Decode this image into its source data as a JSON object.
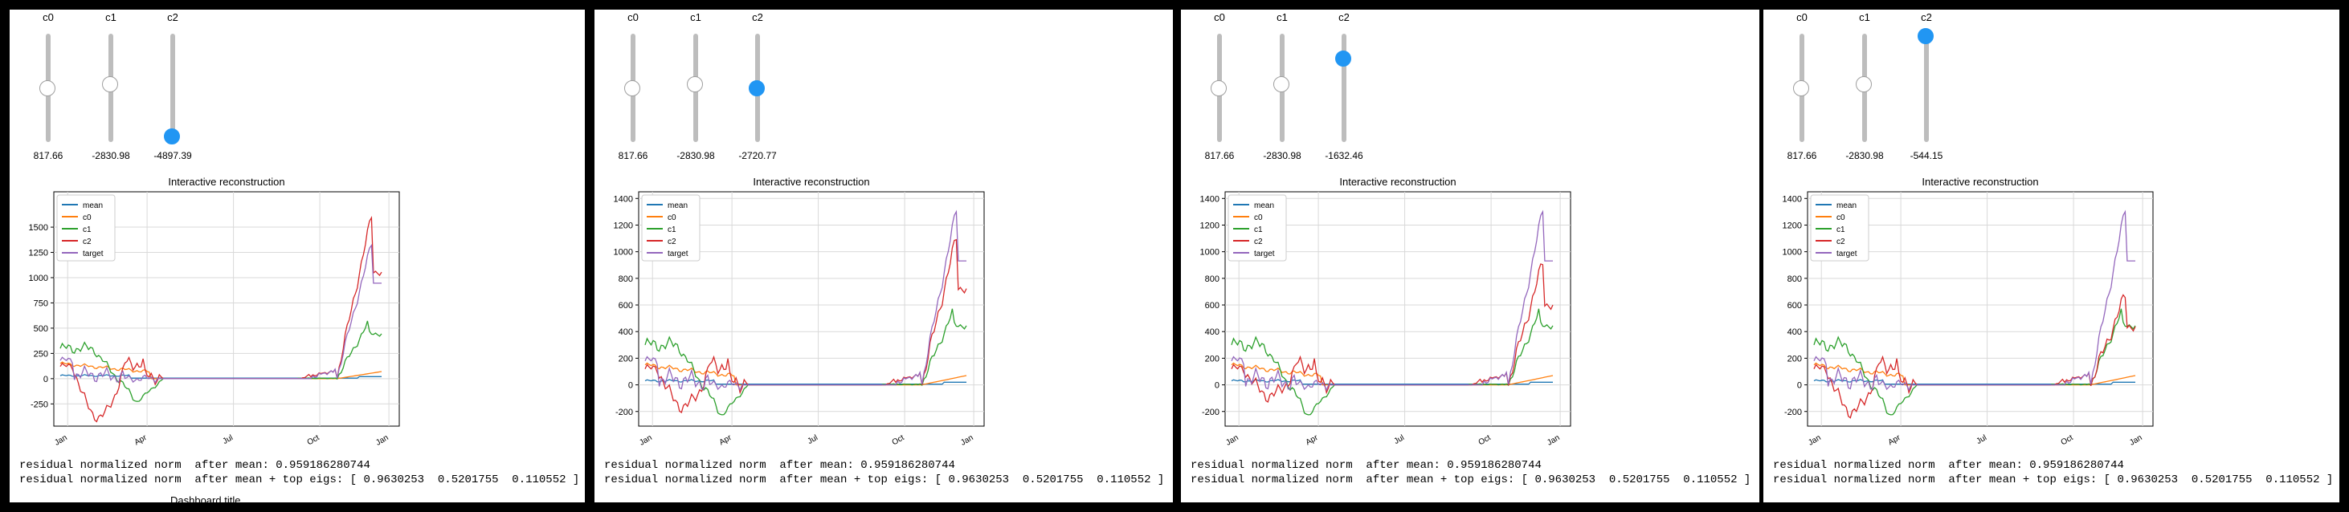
{
  "chart_title": "Interactive reconstruction",
  "slider_labels": [
    "c0",
    "c1",
    "c2"
  ],
  "months": [
    "Jan",
    "Apr",
    "Jul",
    "Oct",
    "Jan"
  ],
  "legend": [
    "mean",
    "c0",
    "c1",
    "c2",
    "target"
  ],
  "colors": {
    "mean": "#1f77b4",
    "c0": "#ff7f0e",
    "c1": "#2ca02c",
    "c2": "#d62728",
    "target": "#9467bd",
    "active": "#2196f3"
  },
  "residual_mean_text": "residual normalized norm  after mean: 0.959186280744",
  "residual_eigs_text": "residual normalized norm  after mean + top eigs: [ 0.9630253  0.5201755  0.110552 ]",
  "cut_text": "Dashboard title",
  "panels": [
    {
      "sliders": [
        {
          "label": "c0",
          "value": "817.66",
          "level": 0.5
        },
        {
          "label": "c1",
          "value": "-2830.98",
          "level": 0.53
        },
        {
          "label": "c2",
          "value": "-4897.39",
          "level": 0.05
        }
      ],
      "active_slider": 2,
      "chart_data": {
        "type": "line",
        "title": "Interactive reconstruction",
        "ylim": [
          -470,
          1850
        ],
        "y_ticks": [
          -250,
          0,
          250,
          500,
          750,
          1000,
          1250,
          1500
        ],
        "x_ticks": [
          "Jan",
          "Apr",
          "Jul",
          "Oct",
          "Jan"
        ],
        "legend": [
          "mean",
          "c0",
          "c1",
          "c2",
          "target"
        ],
        "c2_peak": 1630,
        "target_peak": 1350,
        "c1_peak": 560,
        "c0_peak": 70,
        "c2_min": -380,
        "c1_min": -230
      }
    },
    {
      "sliders": [
        {
          "label": "c0",
          "value": "817.66",
          "level": 0.5
        },
        {
          "label": "c1",
          "value": "-2830.98",
          "level": 0.53
        },
        {
          "label": "c2",
          "value": "-2720.77",
          "level": 0.5
        }
      ],
      "active_slider": 2,
      "chart_data": {
        "type": "line",
        "title": "Interactive reconstruction",
        "ylim": [
          -310,
          1450
        ],
        "y_ticks": [
          -200,
          0,
          200,
          400,
          600,
          800,
          1000,
          1200,
          1400
        ],
        "x_ticks": [
          "Jan",
          "Apr",
          "Jul",
          "Oct",
          "Jan"
        ],
        "legend": [
          "mean",
          "c0",
          "c1",
          "c2",
          "target"
        ],
        "c2_peak": 1120,
        "target_peak": 1330,
        "c1_peak": 560,
        "c0_peak": 70,
        "c2_min": -160,
        "c1_min": -230
      }
    },
    {
      "sliders": [
        {
          "label": "c0",
          "value": "817.66",
          "level": 0.5
        },
        {
          "label": "c1",
          "value": "-2830.98",
          "level": 0.53
        },
        {
          "label": "c2",
          "value": "-1632.46",
          "level": 0.77
        }
      ],
      "active_slider": 2,
      "chart_data": {
        "type": "line",
        "title": "Interactive reconstruction",
        "ylim": [
          -310,
          1450
        ],
        "y_ticks": [
          -200,
          0,
          200,
          400,
          600,
          800,
          1000,
          1200,
          1400
        ],
        "x_ticks": [
          "Jan",
          "Apr",
          "Jul",
          "Oct",
          "Jan"
        ],
        "legend": [
          "mean",
          "c0",
          "c1",
          "c2",
          "target"
        ],
        "c2_peak": 930,
        "target_peak": 1330,
        "c1_peak": 560,
        "c0_peak": 70,
        "c2_min": -80,
        "c1_min": -230
      }
    },
    {
      "sliders": [
        {
          "label": "c0",
          "value": "817.66",
          "level": 0.5
        },
        {
          "label": "c1",
          "value": "-2830.98",
          "level": 0.53
        },
        {
          "label": "c2",
          "value": "-544.15",
          "level": 0.98
        }
      ],
      "active_slider": 2,
      "chart_data": {
        "type": "line",
        "title": "Interactive reconstruction",
        "ylim": [
          -310,
          1450
        ],
        "y_ticks": [
          -200,
          0,
          200,
          400,
          600,
          800,
          1000,
          1200,
          1400
        ],
        "x_ticks": [
          "Jan",
          "Apr",
          "Jul",
          "Oct",
          "Jan"
        ],
        "legend": [
          "mean",
          "c0",
          "c1",
          "c2",
          "target"
        ],
        "c2_peak": 680,
        "target_peak": 1330,
        "c1_peak": 560,
        "c0_peak": 70,
        "c2_min": -200,
        "c1_min": -230
      }
    }
  ]
}
